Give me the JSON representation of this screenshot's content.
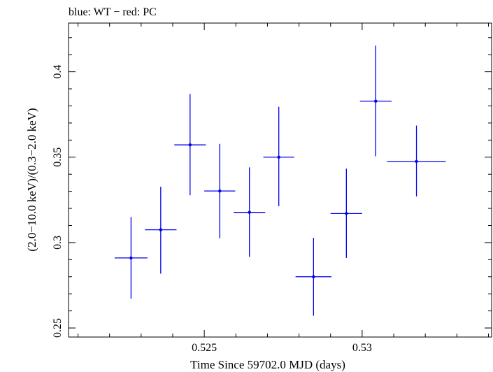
{
  "chart_data": {
    "type": "scatter",
    "title": "blue: WT − red: PC",
    "xlabel": "Time Since 59702.0 MJD (days)",
    "ylabel": "(2.0−10.0 keV)/(0.3−2.0 keV)",
    "xlim": [
      0.5207,
      0.5341
    ],
    "ylim": [
      0.2447,
      0.4285
    ],
    "x_ticks": [
      0.525,
      0.53
    ],
    "x_tick_labels": [
      "0.525",
      "0.53"
    ],
    "y_ticks": [
      0.25,
      0.3,
      0.35,
      0.4
    ],
    "y_tick_labels": [
      "0.25",
      "0.3",
      "0.35",
      "0.4"
    ],
    "grid": false,
    "series": [
      {
        "name": "WT",
        "color": "#0000ee",
        "points": [
          {
            "x": 0.52268,
            "y": 0.291,
            "xerr": 0.00052,
            "ylo": 0.2672,
            "yhi": 0.315
          },
          {
            "x": 0.52362,
            "y": 0.3075,
            "xerr": 0.0005,
            "ylo": 0.2818,
            "yhi": 0.3327
          },
          {
            "x": 0.52455,
            "y": 0.3572,
            "xerr": 0.0005,
            "ylo": 0.3277,
            "yhi": 0.387
          },
          {
            "x": 0.52549,
            "y": 0.3302,
            "xerr": 0.00049,
            "ylo": 0.3025,
            "yhi": 0.3578
          },
          {
            "x": 0.52643,
            "y": 0.3177,
            "xerr": 0.0005,
            "ylo": 0.2916,
            "yhi": 0.344
          },
          {
            "x": 0.52736,
            "y": 0.35,
            "xerr": 0.00049,
            "ylo": 0.3213,
            "yhi": 0.3795
          },
          {
            "x": 0.52846,
            "y": 0.28,
            "xerr": 0.00057,
            "ylo": 0.2572,
            "yhi": 0.3028
          },
          {
            "x": 0.5295,
            "y": 0.317,
            "xerr": 0.0005,
            "ylo": 0.291,
            "yhi": 0.3433
          },
          {
            "x": 0.53043,
            "y": 0.3828,
            "xerr": 0.0005,
            "ylo": 0.3505,
            "yhi": 0.4153
          },
          {
            "x": 0.53172,
            "y": 0.3475,
            "xerr": 0.00093,
            "ylo": 0.327,
            "yhi": 0.3685
          }
        ]
      }
    ]
  }
}
